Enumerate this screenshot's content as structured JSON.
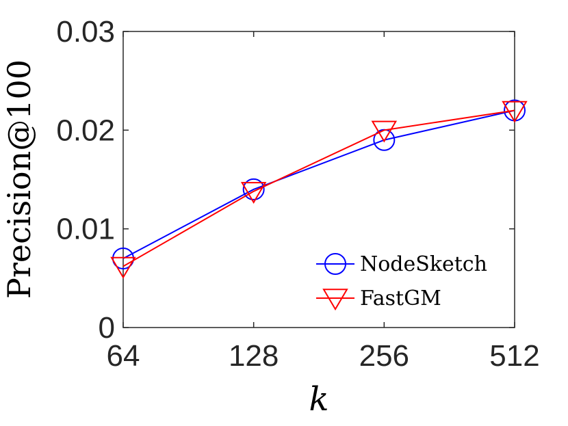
{
  "chart_data": {
    "type": "line",
    "x": [
      "64",
      "128",
      "256",
      "512"
    ],
    "ylim": [
      0,
      0.03
    ],
    "yticks": [
      "0",
      "0.01",
      "0.02",
      "0.03"
    ],
    "xlabel": "k",
    "ylabel": "Precision@100",
    "grid": false,
    "legend": "bottom-right",
    "series": [
      {
        "name": "NodeSketch",
        "values": [
          0.007,
          0.014,
          0.019,
          0.022
        ],
        "color": "#0000ff",
        "marker": "circle"
      },
      {
        "name": "FastGM",
        "values": [
          0.0062,
          0.0138,
          0.02,
          0.022
        ],
        "color": "#ff0000",
        "marker": "triangle-down"
      }
    ]
  }
}
